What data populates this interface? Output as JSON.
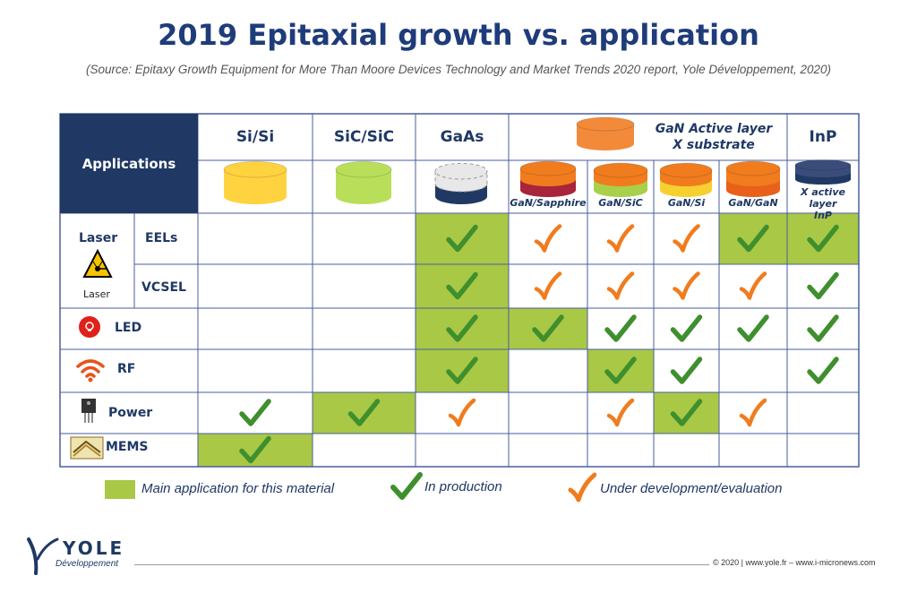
{
  "title": "2019 Epitaxial growth vs. application",
  "source": "(Source: Epitaxy Growth Equipment for More Than Moore Devices Technology and Market Trends 2020 report, Yole Développement, 2020)",
  "header": {
    "applications": "Applications",
    "columns": [
      "Si/Si",
      "SiC/SiC",
      "GaAs"
    ],
    "gan_group_line1": "GaN Active layer",
    "gan_group_line2": "X substrate",
    "inp": "InP",
    "sub_columns": [
      "GaN/Sapphire",
      "GaN/SiC",
      "GaN/Si",
      "GaN/GaN"
    ],
    "inp_sub_line1": "X active layer",
    "inp_sub_line2": "InP"
  },
  "rows": {
    "laser": "Laser",
    "laser_caption": "Laser",
    "eels": "EELs",
    "vcsel": "VCSEL",
    "led": "LED",
    "rf": "RF",
    "power": "Power",
    "mems": "MEMS"
  },
  "legend": {
    "main": "Main application for this material",
    "production": "In production",
    "development": "Under development/evaluation"
  },
  "colors": {
    "main_application": "#a9c846",
    "in_production": "#3f8f2e",
    "under_development": "#f07c1e",
    "header_navy": "#1f3864",
    "grid_line": "#4a5e9c"
  },
  "matrix": {
    "columns": [
      "Si/Si",
      "SiC/SiC",
      "GaAs",
      "GaN/Sapphire",
      "GaN/SiC",
      "GaN/Si",
      "GaN/GaN",
      "InP"
    ],
    "cells": {
      "EELs": [
        [
          "",
          ""
        ],
        [
          "",
          ""
        ],
        [
          "main",
          "production"
        ],
        [
          "",
          "development"
        ],
        [
          "",
          "development"
        ],
        [
          "",
          "development"
        ],
        [
          "main",
          "production"
        ],
        [
          "main",
          "production"
        ]
      ],
      "VCSEL": [
        [
          "",
          ""
        ],
        [
          "",
          ""
        ],
        [
          "main",
          "production"
        ],
        [
          "",
          "development"
        ],
        [
          "",
          "development"
        ],
        [
          "",
          "development"
        ],
        [
          "",
          "development"
        ],
        [
          "",
          "production"
        ]
      ],
      "LED": [
        [
          "",
          ""
        ],
        [
          "",
          ""
        ],
        [
          "main",
          "production"
        ],
        [
          "main",
          "production"
        ],
        [
          "",
          "production"
        ],
        [
          "",
          "production"
        ],
        [
          "",
          "production"
        ],
        [
          "",
          "production"
        ]
      ],
      "RF": [
        [
          "",
          ""
        ],
        [
          "",
          ""
        ],
        [
          "main",
          "production"
        ],
        [
          "",
          ""
        ],
        [
          "main",
          "production"
        ],
        [
          "",
          "production"
        ],
        [
          "",
          ""
        ],
        [
          "",
          "production"
        ]
      ],
      "Power": [
        [
          "",
          "production"
        ],
        [
          "main",
          "production"
        ],
        [
          "",
          "development"
        ],
        [
          "",
          ""
        ],
        [
          "",
          "development"
        ],
        [
          "main",
          "production"
        ],
        [
          "",
          "development"
        ],
        [
          "",
          ""
        ]
      ],
      "MEMS": [
        [
          "main",
          "production"
        ],
        [
          "",
          ""
        ],
        [
          "",
          ""
        ],
        [
          "",
          ""
        ],
        [
          "",
          ""
        ],
        [
          "",
          ""
        ],
        [
          "",
          ""
        ],
        [
          "",
          ""
        ]
      ]
    }
  },
  "footer": {
    "copyright": "© 2020 | www.yole.fr – www.i-micronews.com",
    "logo": "YOLE",
    "logo_sub": "Développement"
  }
}
